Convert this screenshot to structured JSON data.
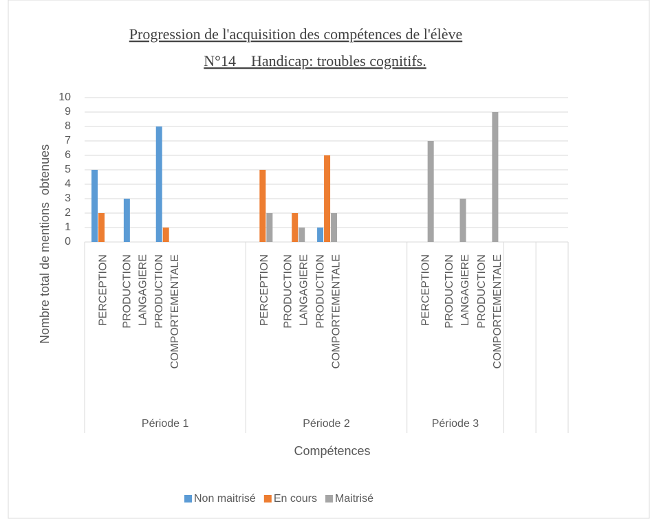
{
  "chart_data": {
    "type": "bar",
    "title": "Progression de l'acquisition des compétences de l'élève",
    "subtitle": "N°14    Handicap: troubles cognitifs.",
    "y_label": "Nombre total de mentions  obtenues",
    "x_label": "Compétences",
    "groups": [
      {
        "name": "Période 1",
        "categories": [
          "PERCEPTION",
          "PRODUCTION LANGAGIERE",
          "PRODUCTION COMPORTEMENTALE",
          null,
          null
        ]
      },
      {
        "name": "Période 2",
        "categories": [
          "PERCEPTION",
          "PRODUCTION LANGAGIERE",
          "PRODUCTION COMPORTEMENTALE",
          null,
          null
        ]
      },
      {
        "name": "Période 3",
        "categories": [
          "PERCEPTION",
          "PRODUCTION LANGAGIERE",
          "PRODUCTION COMPORTEMENTALE"
        ]
      },
      {
        "name": null,
        "categories": [
          null
        ]
      },
      {
        "name": null,
        "categories": [
          null
        ]
      }
    ],
    "series": [
      {
        "name": "Non maitrisé",
        "color": "#5b9bd5",
        "values": [
          5,
          3,
          8,
          null,
          null,
          0,
          0,
          1,
          null,
          null,
          0,
          0,
          0,
          null,
          null
        ]
      },
      {
        "name": "En cours",
        "color": "#ed7d31",
        "values": [
          2,
          0,
          1,
          null,
          null,
          5,
          2,
          6,
          null,
          null,
          0,
          0,
          0,
          null,
          null
        ]
      },
      {
        "name": "Maitrisé",
        "color": "#a5a5a5",
        "values": [
          0,
          0,
          0,
          null,
          null,
          2,
          1,
          2,
          null,
          null,
          7,
          3,
          9,
          null,
          null
        ]
      }
    ],
    "ylim": [
      0,
      10
    ],
    "yticks": [
      0,
      1,
      2,
      3,
      4,
      5,
      6,
      7,
      8,
      9,
      10
    ],
    "grid": true,
    "legend": "bottom"
  }
}
